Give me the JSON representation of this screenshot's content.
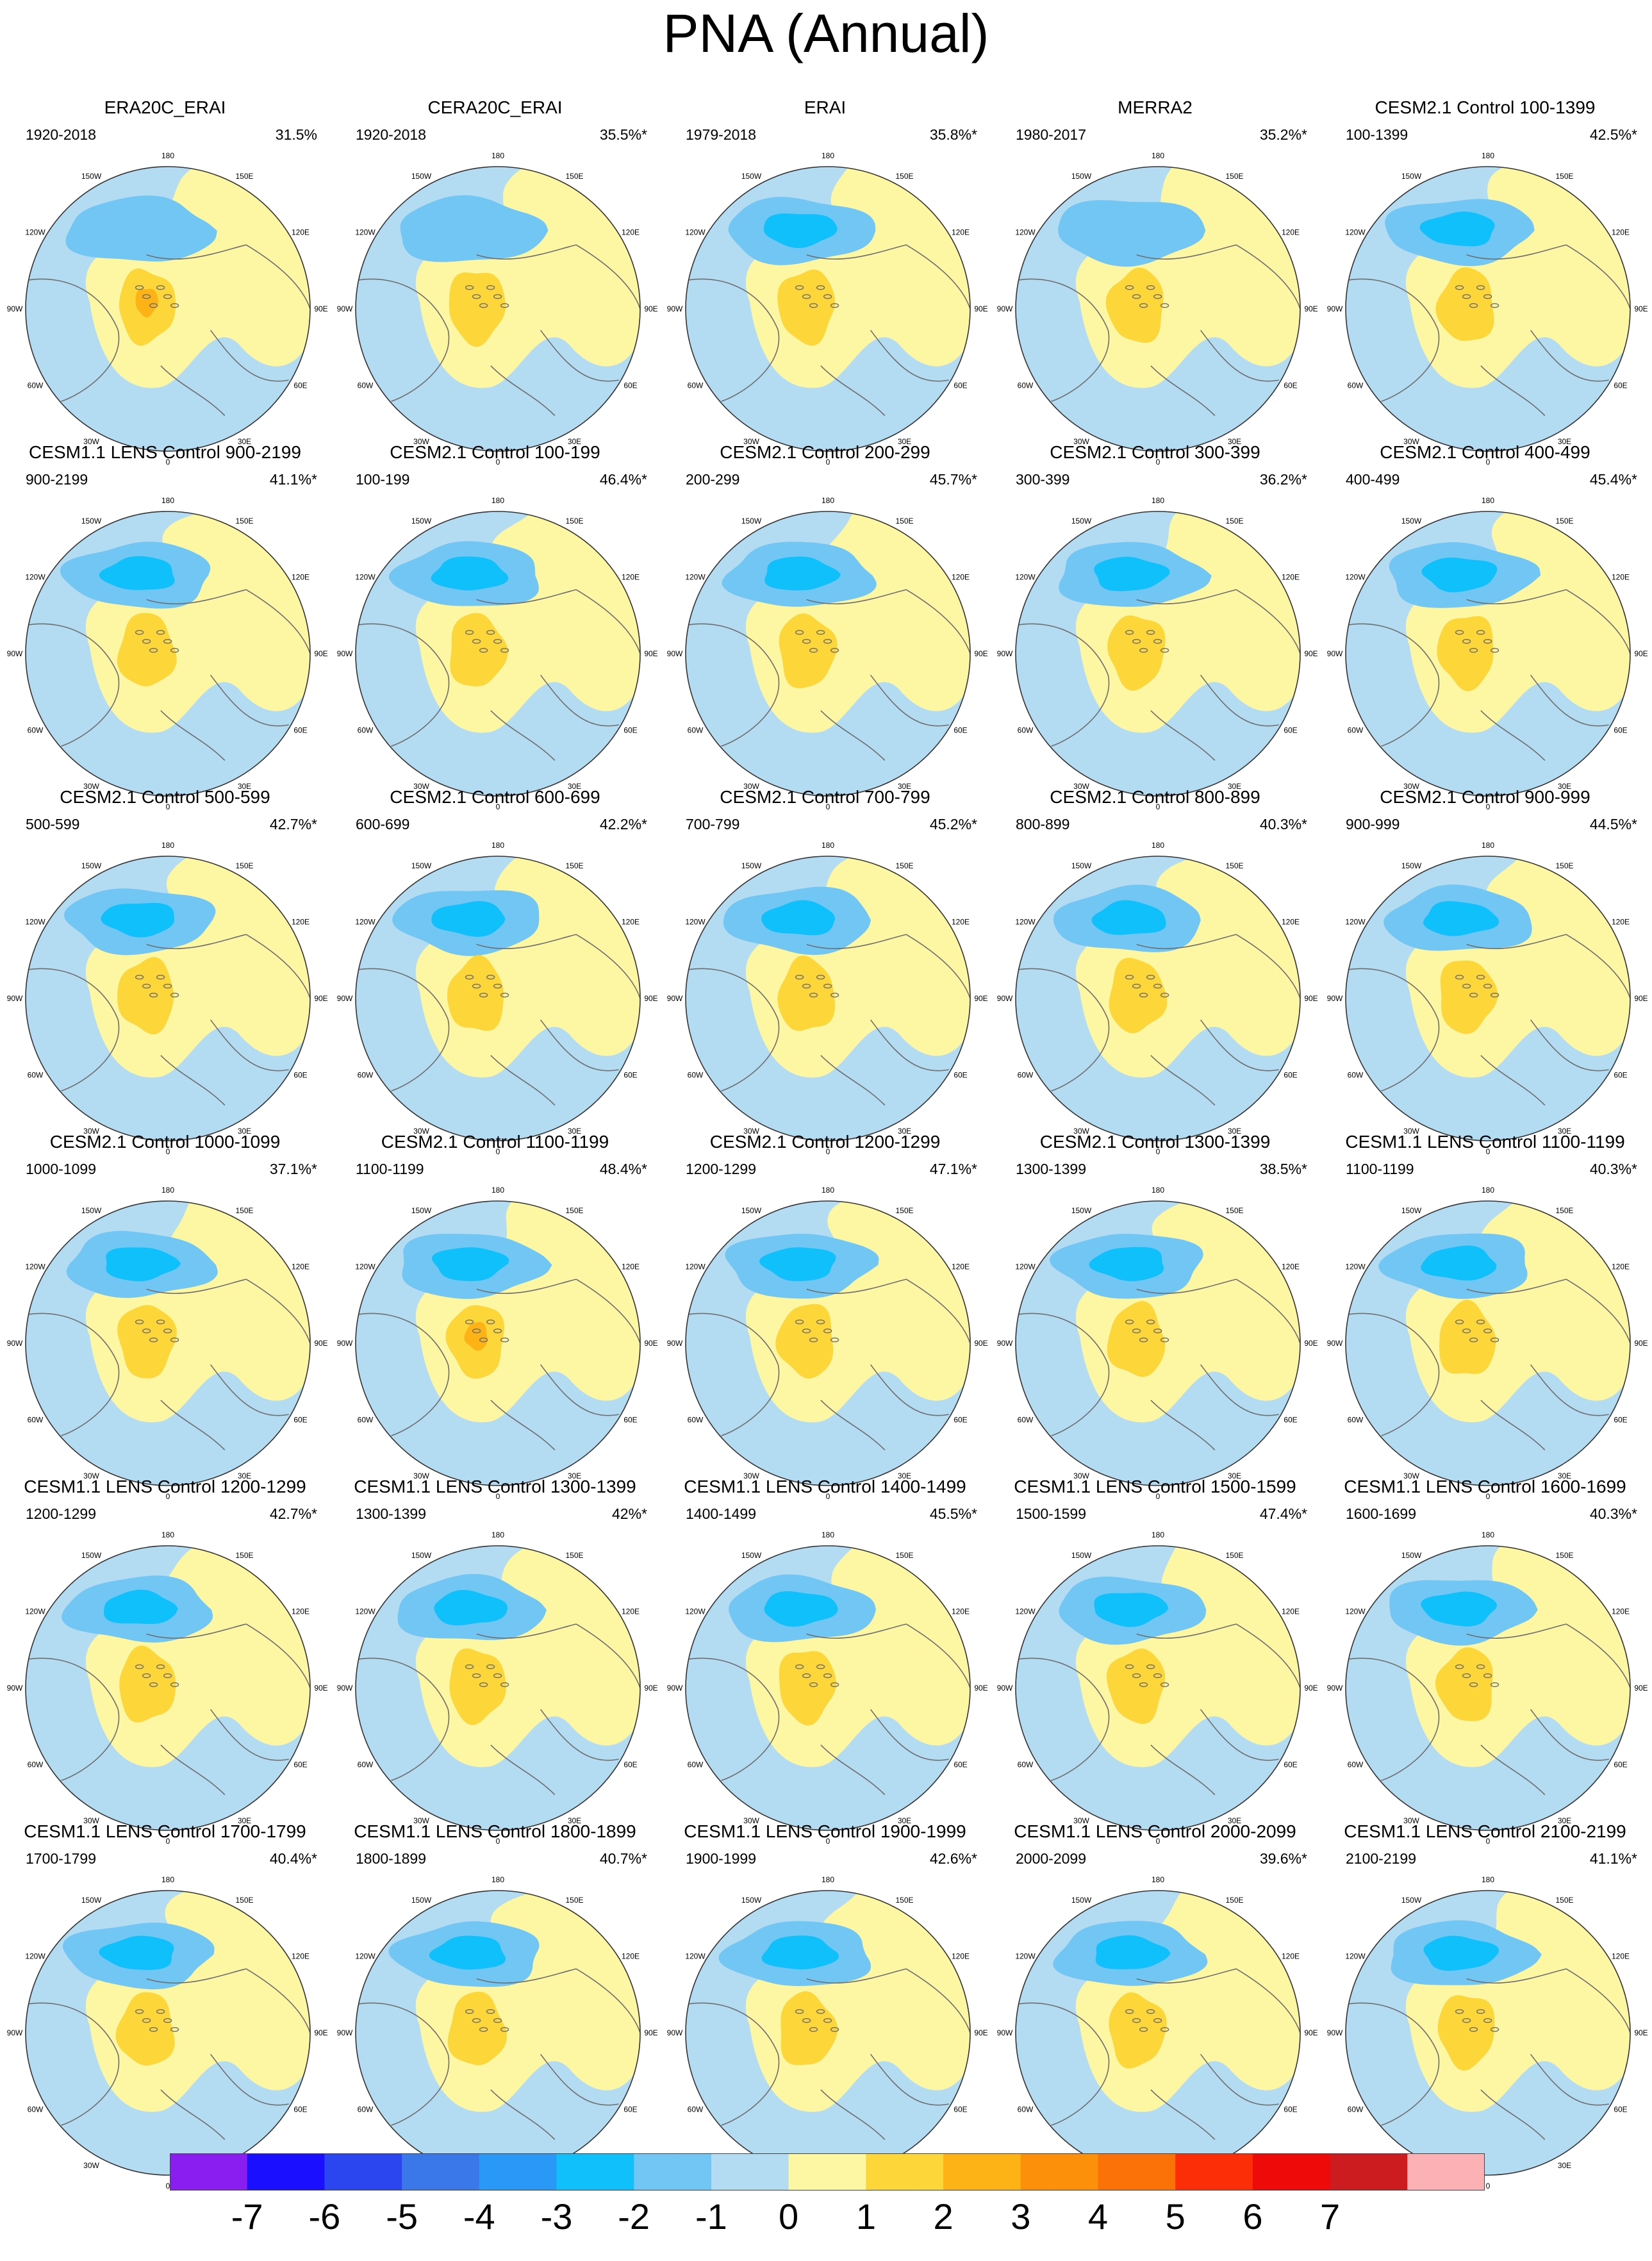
{
  "title": "PNA (Annual)",
  "panels": [
    {
      "title": "ERA20C_ERAI",
      "period": "1920-2018",
      "variance": "31.5%"
    },
    {
      "title": "CERA20C_ERAI",
      "period": "1920-2018",
      "variance": "35.5%*"
    },
    {
      "title": "ERAI",
      "period": "1979-2018",
      "variance": "35.8%*"
    },
    {
      "title": "MERRA2",
      "period": "1980-2017",
      "variance": "35.2%*"
    },
    {
      "title": "CESM2.1 Control 100-1399",
      "period": "100-1399",
      "variance": "42.5%*"
    },
    {
      "title": "CESM1.1 LENS Control 900-2199",
      "period": "900-2199",
      "variance": "41.1%*"
    },
    {
      "title": "CESM2.1 Control 100-199",
      "period": "100-199",
      "variance": "46.4%*"
    },
    {
      "title": "CESM2.1 Control 200-299",
      "period": "200-299",
      "variance": "45.7%*"
    },
    {
      "title": "CESM2.1 Control 300-399",
      "period": "300-399",
      "variance": "36.2%*"
    },
    {
      "title": "CESM2.1 Control 400-499",
      "period": "400-499",
      "variance": "45.4%*"
    },
    {
      "title": "CESM2.1 Control 500-599",
      "period": "500-599",
      "variance": "42.7%*"
    },
    {
      "title": "CESM2.1 Control 600-699",
      "period": "600-699",
      "variance": "42.2%*"
    },
    {
      "title": "CESM2.1 Control 700-799",
      "period": "700-799",
      "variance": "45.2%*"
    },
    {
      "title": "CESM2.1 Control 800-899",
      "period": "800-899",
      "variance": "40.3%*"
    },
    {
      "title": "CESM2.1 Control 900-999",
      "period": "900-999",
      "variance": "44.5%*"
    },
    {
      "title": "CESM2.1 Control 1000-1099",
      "period": "1000-1099",
      "variance": "37.1%*"
    },
    {
      "title": "CESM2.1 Control 1100-1199",
      "period": "1100-1199",
      "variance": "48.4%*"
    },
    {
      "title": "CESM2.1 Control 1200-1299",
      "period": "1200-1299",
      "variance": "47.1%*"
    },
    {
      "title": "CESM2.1 Control 1300-1399",
      "period": "1300-1399",
      "variance": "38.5%*"
    },
    {
      "title": "CESM1.1 LENS Control 1100-1199",
      "period": "1100-1199",
      "variance": "40.3%*"
    },
    {
      "title": "CESM1.1 LENS Control 1200-1299",
      "period": "1200-1299",
      "variance": "42.7%*"
    },
    {
      "title": "CESM1.1 LENS Control 1300-1399",
      "period": "1300-1399",
      "variance": "42%*"
    },
    {
      "title": "CESM1.1 LENS Control 1400-1499",
      "period": "1400-1499",
      "variance": "45.5%*"
    },
    {
      "title": "CESM1.1 LENS Control 1500-1599",
      "period": "1500-1599",
      "variance": "47.4%*"
    },
    {
      "title": "CESM1.1 LENS Control 1600-1699",
      "period": "1600-1699",
      "variance": "40.3%*"
    },
    {
      "title": "CESM1.1 LENS Control 1700-1799",
      "period": "1700-1799",
      "variance": "40.4%*"
    },
    {
      "title": "CESM1.1 LENS Control 1800-1899",
      "period": "1800-1899",
      "variance": "40.7%*"
    },
    {
      "title": "CESM1.1 LENS Control 1900-1999",
      "period": "1900-1999",
      "variance": "42.6%*"
    },
    {
      "title": "CESM1.1 LENS Control 2000-2099",
      "period": "2000-2099",
      "variance": "39.6%*"
    },
    {
      "title": "CESM1.1 LENS Control 2100-2199",
      "period": "2100-2199",
      "variance": "41.1%*"
    }
  ],
  "map_labels": {
    "n180": "180",
    "w150": "150W",
    "e150": "150E",
    "w120": "120W",
    "e120": "120E",
    "w90": "90W",
    "e90": "90E",
    "w60": "60W",
    "e60": "60E",
    "w30": "30W",
    "e30": "30E",
    "s0": "0"
  },
  "colorbar": {
    "colors": [
      "#8a1ef0",
      "#1a0fff",
      "#2b46ee",
      "#3a78ea",
      "#2a98f6",
      "#0fc0fa",
      "#72c6f4",
      "#b3dcf2",
      "#fdf6a2",
      "#fdd63a",
      "#fdb316",
      "#fc900a",
      "#fb7208",
      "#fb2e08",
      "#ee0a08",
      "#cc1c20",
      "#fcb2b4"
    ],
    "labels": [
      "-7",
      "-6",
      "-5",
      "-4",
      "-3",
      "-2",
      "-1",
      "0",
      "1",
      "2",
      "3",
      "4",
      "5",
      "6",
      "7"
    ]
  }
}
